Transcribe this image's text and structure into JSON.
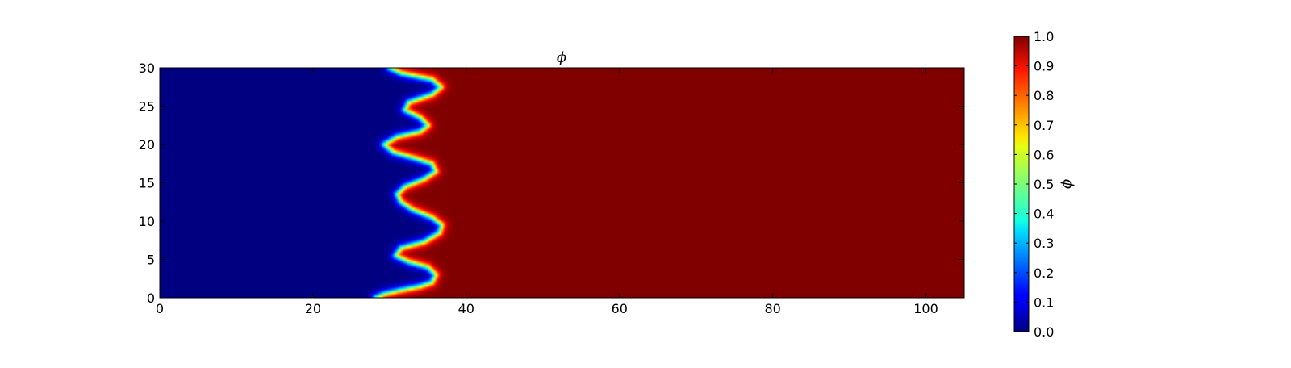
{
  "chart_data": {
    "type": "heatmap",
    "title": "ϕ",
    "xlabel": "",
    "ylabel": "",
    "colorbar_label": "ϕ",
    "colormap": "jet",
    "xlim": [
      0,
      105
    ],
    "ylim": [
      0,
      30
    ],
    "clim": [
      0,
      1
    ],
    "x_ticks": [
      0,
      20,
      40,
      60,
      80,
      100
    ],
    "y_ticks": [
      0,
      5,
      10,
      15,
      20,
      25,
      30
    ],
    "colorbar_ticks": [
      0.0,
      0.1,
      0.2,
      0.3,
      0.4,
      0.5,
      0.6,
      0.7,
      0.8,
      0.9,
      1.0
    ],
    "colorbar_tick_labels": [
      "0.0",
      "0.1",
      "0.2",
      "0.3",
      "0.4",
      "0.5",
      "0.6",
      "0.7",
      "0.8",
      "0.9",
      "1.0"
    ],
    "field": {
      "left_value": 0.0,
      "right_value": 1.0,
      "interface_width": 0.6,
      "interface_contour": {
        "y": [
          0,
          0.5,
          1.0,
          1.5,
          2.0,
          3.0,
          4.0,
          4.7,
          5.5,
          6.5,
          7.3,
          8.5,
          9.5,
          10.5,
          11.5,
          12.5,
          13.5,
          14.5,
          15.5,
          16.5,
          17.5,
          18.3,
          19.0,
          20.0,
          21.0,
          21.7,
          22.5,
          23.5,
          24.5,
          25.5,
          26.5,
          27.5,
          28.5,
          29.3,
          30.0
        ],
        "x": [
          28.2,
          29.3,
          31.5,
          34.0,
          35.5,
          36.0,
          35.0,
          32.5,
          30.8,
          31.5,
          34.5,
          36.5,
          36.8,
          35.5,
          33.0,
          31.5,
          31.0,
          32.0,
          34.5,
          36.0,
          35.5,
          33.0,
          30.5,
          29.3,
          31.0,
          34.0,
          35.0,
          34.0,
          32.0,
          32.5,
          35.5,
          36.7,
          35.5,
          31.5,
          30.0
        ]
      }
    }
  }
}
